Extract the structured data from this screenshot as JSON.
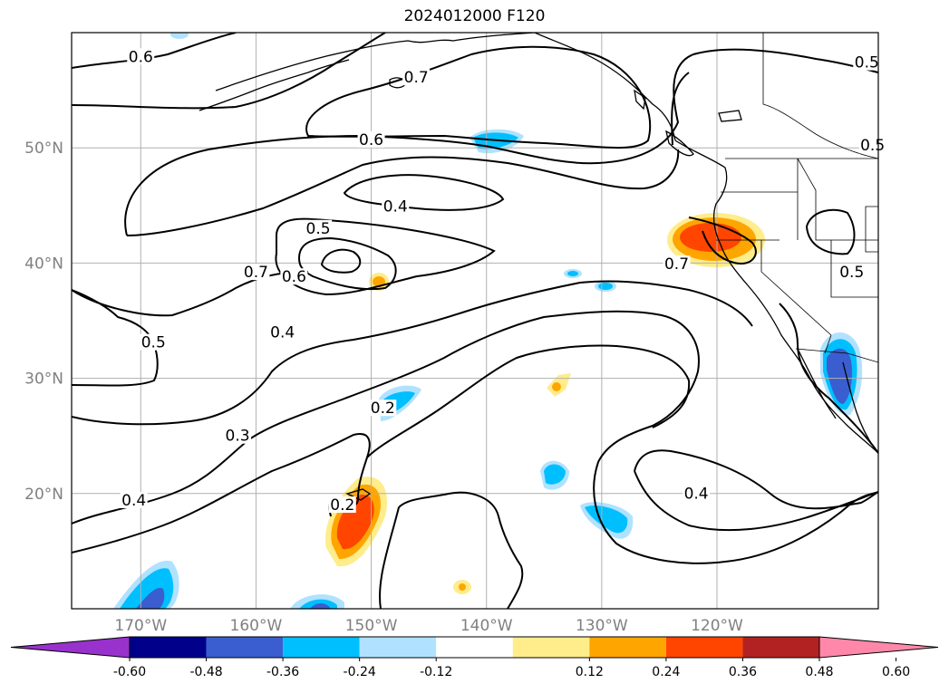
{
  "title": "2024012000 F120",
  "lat_labels": [
    {
      "text": "50°N",
      "lat": 50
    },
    {
      "text": "40°N",
      "lat": 40
    },
    {
      "text": "30°N",
      "lat": 30
    },
    {
      "text": "20°N",
      "lat": 20
    }
  ],
  "lon_labels": [
    {
      "text": "170°W",
      "lon": -170
    },
    {
      "text": "160°W",
      "lon": -160
    },
    {
      "text": "150°W",
      "lon": -150
    },
    {
      "text": "140°W",
      "lon": -140
    },
    {
      "text": "130°W",
      "lon": -130
    },
    {
      "text": "120°W",
      "lon": -120
    }
  ],
  "extent": {
    "lon_min": -176,
    "lon_max": -106,
    "lat_min": 10,
    "lat_max": 60
  },
  "contour_labels": [
    {
      "text": "0.6",
      "lon": -170.0,
      "lat": 57.7
    },
    {
      "text": "0.7",
      "lon": -146.1,
      "lat": 55.9
    },
    {
      "text": "0.6",
      "lon": -150.0,
      "lat": 50.5
    },
    {
      "text": "0.4",
      "lon": -147.9,
      "lat": 44.7
    },
    {
      "text": "0.5",
      "lon": -154.6,
      "lat": 42.8
    },
    {
      "text": "0.7",
      "lon": -160.0,
      "lat": 39.0
    },
    {
      "text": "0.6",
      "lon": -156.7,
      "lat": 38.6
    },
    {
      "text": "0.4",
      "lon": -157.7,
      "lat": 33.8
    },
    {
      "text": "0.5",
      "lon": -168.9,
      "lat": 32.9
    },
    {
      "text": "0.2",
      "lon": -149.0,
      "lat": 27.2
    },
    {
      "text": "0.3",
      "lon": -161.6,
      "lat": 24.8
    },
    {
      "text": "0.4",
      "lon": -170.6,
      "lat": 19.2
    },
    {
      "text": "0.2",
      "lon": -152.5,
      "lat": 18.8
    },
    {
      "text": "0.4",
      "lon": -121.8,
      "lat": 19.8
    },
    {
      "text": "0.7",
      "lon": -123.5,
      "lat": 39.7
    },
    {
      "text": "0.5",
      "lon": -108.3,
      "lat": 39.0
    },
    {
      "text": "0.5",
      "lon": -106.5,
      "lat": 50.0
    },
    {
      "text": "0.5",
      "lon": -107.0,
      "lat": 57.2
    }
  ],
  "colorbar": {
    "ticks": [
      "-0.60",
      "-0.48",
      "-0.36",
      "-0.24",
      "-0.12",
      "0.12",
      "0.24",
      "0.36",
      "0.48",
      "0.60"
    ],
    "colors": [
      "#9932CC",
      "#00008B",
      "#3A5ECF",
      "#00BFFF",
      "#B0E2FF",
      "#FFFFFF",
      "#FFEC8B",
      "#FFA500",
      "#FF4500",
      "#B22222",
      "#FF88AA"
    ]
  }
}
